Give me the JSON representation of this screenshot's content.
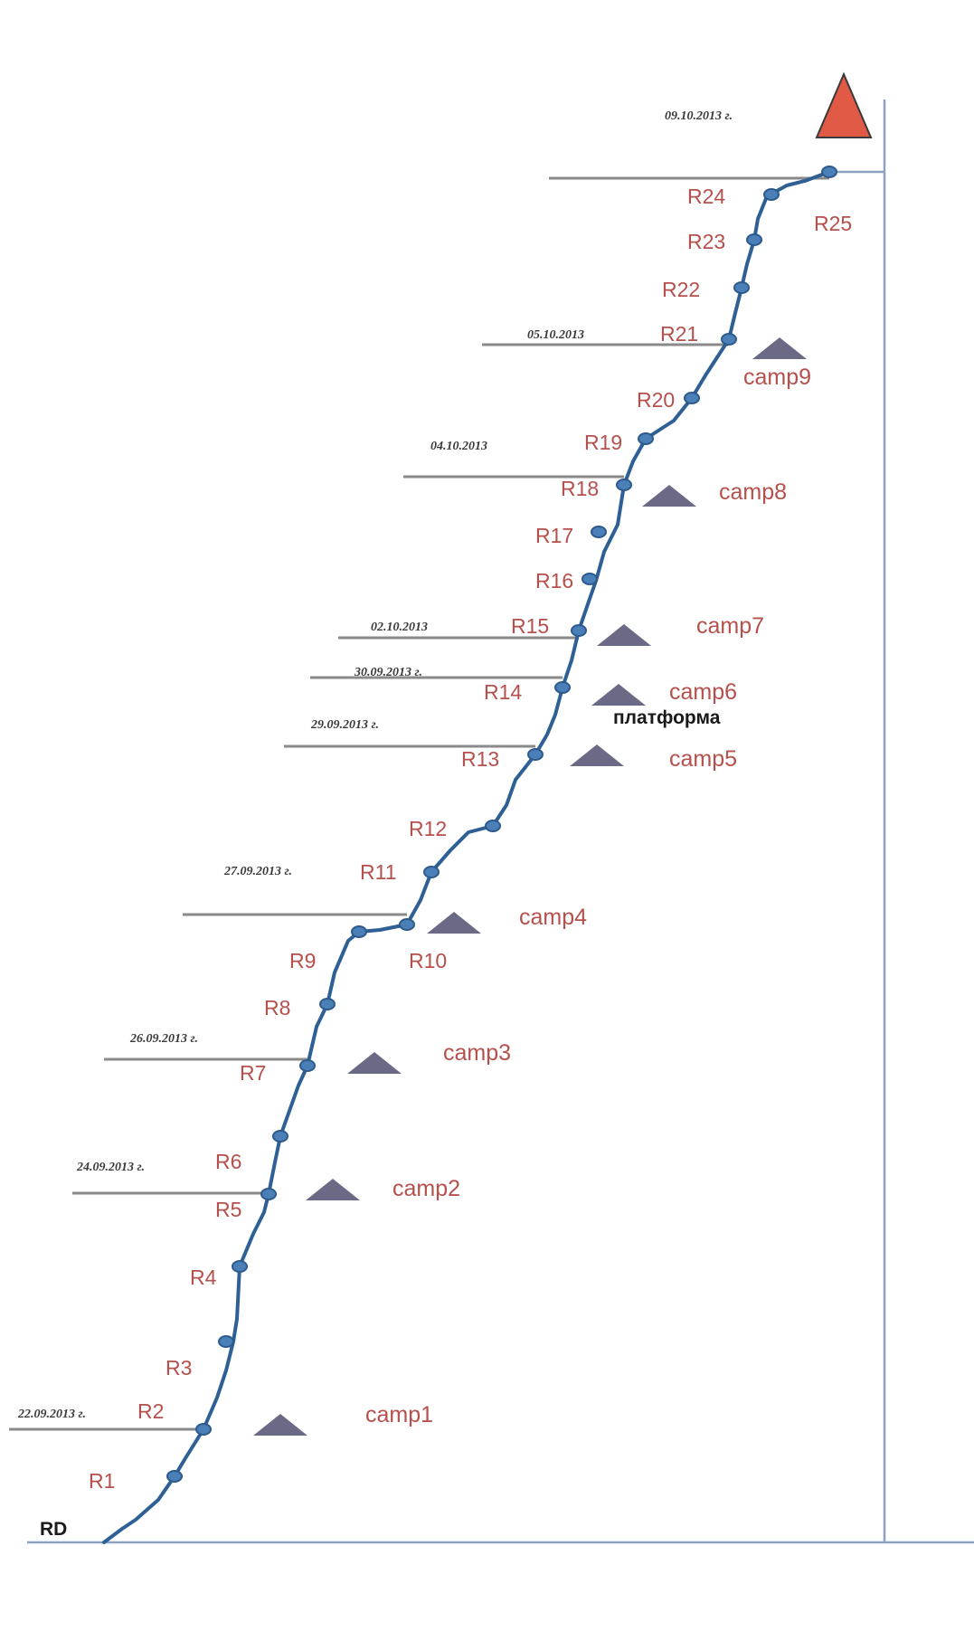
{
  "diagram": {
    "start_label": "RD",
    "summit_date": "09.10.2013 г.",
    "platform_label": "платформа",
    "route_points": [
      "R1",
      "R2",
      "R3",
      "R4",
      "R5",
      "R6",
      "R7",
      "R8",
      "R9",
      "R10",
      "R11",
      "R12",
      "R13",
      "R14",
      "R15",
      "R16",
      "R17",
      "R18",
      "R19",
      "R20",
      "R21",
      "R22",
      "R23",
      "R24",
      "R25"
    ],
    "camps": [
      {
        "name": "camp1",
        "date": "22.09.2013 г."
      },
      {
        "name": "camp2",
        "date": "24.09.2013 г."
      },
      {
        "name": "camp3",
        "date": "26.09.2013 г."
      },
      {
        "name": "camp4",
        "date": "27.09.2013 г."
      },
      {
        "name": "camp5",
        "date": "29.09.2013 г."
      },
      {
        "name": "camp6",
        "date": "30.09.2013 г."
      },
      {
        "name": "camp7",
        "date": "02.10.2013"
      },
      {
        "name": "camp8",
        "date": "04.10.2013"
      },
      {
        "name": "camp9",
        "date": "05.10.2013"
      }
    ],
    "colors": {
      "route": "#2e5f95",
      "node": "#4a7fb7",
      "label": "#b5504c",
      "tent": "#6b6a86",
      "summit": "#e05a45",
      "axis": "#8ea3c2",
      "camp_line": "#8a8a8a"
    }
  }
}
